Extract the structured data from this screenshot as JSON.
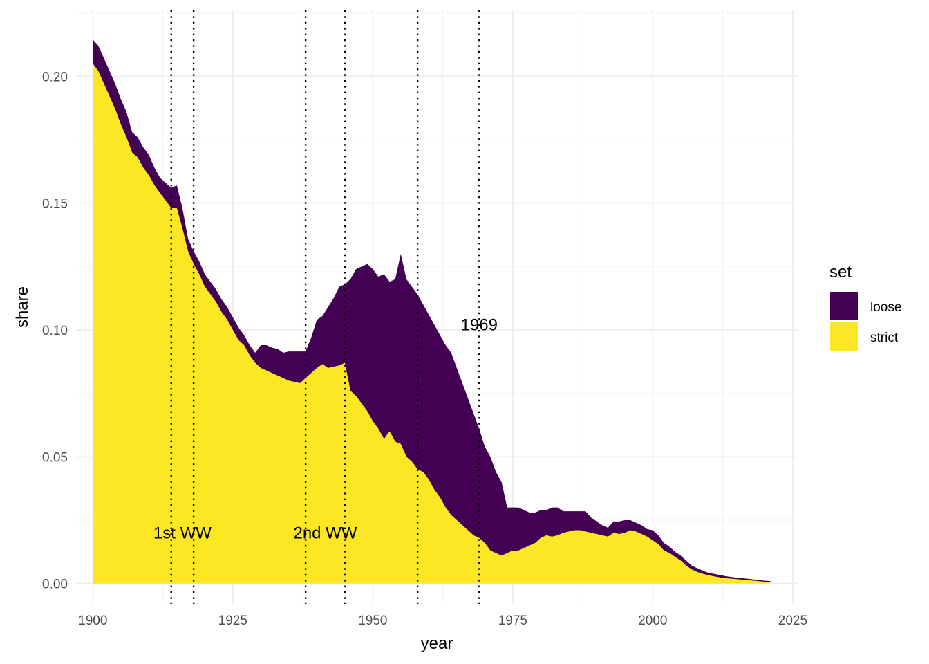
{
  "chart_data": {
    "type": "area",
    "stacked": true,
    "title": "",
    "xlabel": "year",
    "ylabel": "share",
    "xlim": [
      1897,
      2026
    ],
    "ylim": [
      -0.008,
      0.226
    ],
    "x_ticks": [
      1900,
      1925,
      1950,
      1975,
      2000,
      2025
    ],
    "x_tick_labels": [
      "1900",
      "1925",
      "1950",
      "1975",
      "2000",
      "2025"
    ],
    "y_ticks": [
      0.0,
      0.05,
      0.1,
      0.15,
      0.2
    ],
    "y_tick_labels": [
      "0.00",
      "0.05",
      "0.10",
      "0.15",
      "0.20"
    ],
    "grid": true,
    "legend": {
      "title": "set",
      "position": "right",
      "entries": [
        {
          "label": "loose",
          "color": "#440154"
        },
        {
          "label": "strict",
          "color": "#FDE725"
        }
      ]
    },
    "x": [
      1900,
      1901,
      1902,
      1903,
      1904,
      1905,
      1906,
      1907,
      1908,
      1909,
      1910,
      1911,
      1912,
      1913,
      1914,
      1915,
      1916,
      1917,
      1918,
      1919,
      1920,
      1921,
      1922,
      1923,
      1924,
      1925,
      1926,
      1927,
      1928,
      1929,
      1930,
      1931,
      1932,
      1933,
      1934,
      1935,
      1936,
      1937,
      1938,
      1939,
      1940,
      1941,
      1942,
      1943,
      1944,
      1945,
      1946,
      1947,
      1948,
      1949,
      1950,
      1951,
      1952,
      1953,
      1954,
      1955,
      1956,
      1957,
      1958,
      1959,
      1960,
      1961,
      1962,
      1963,
      1964,
      1965,
      1966,
      1967,
      1968,
      1969,
      1970,
      1971,
      1972,
      1973,
      1974,
      1975,
      1976,
      1977,
      1978,
      1979,
      1980,
      1981,
      1982,
      1983,
      1984,
      1985,
      1986,
      1987,
      1988,
      1989,
      1990,
      1991,
      1992,
      1993,
      1994,
      1995,
      1996,
      1997,
      1998,
      1999,
      2000,
      2001,
      2002,
      2003,
      2004,
      2005,
      2006,
      2007,
      2008,
      2009,
      2010,
      2011,
      2012,
      2013,
      2014,
      2015,
      2016,
      2017,
      2018,
      2019,
      2020,
      2021
    ],
    "series": [
      {
        "name": "strict",
        "color": "#FDE725",
        "values": [
          0.205,
          0.202,
          0.197,
          0.192,
          0.187,
          0.181,
          0.176,
          0.17,
          0.168,
          0.164,
          0.161,
          0.157,
          0.154,
          0.151,
          0.148,
          0.148,
          0.14,
          0.131,
          0.126,
          0.122,
          0.117,
          0.114,
          0.111,
          0.107,
          0.104,
          0.1,
          0.096,
          0.094,
          0.09,
          0.087,
          0.085,
          0.084,
          0.083,
          0.082,
          0.081,
          0.08,
          0.0795,
          0.079,
          0.081,
          0.083,
          0.085,
          0.0865,
          0.085,
          0.0855,
          0.086,
          0.087,
          0.076,
          0.074,
          0.071,
          0.068,
          0.064,
          0.061,
          0.057,
          0.06,
          0.056,
          0.055,
          0.05,
          0.048,
          0.045,
          0.044,
          0.041,
          0.037,
          0.034,
          0.03,
          0.027,
          0.025,
          0.023,
          0.021,
          0.019,
          0.018,
          0.016,
          0.013,
          0.012,
          0.011,
          0.012,
          0.013,
          0.013,
          0.014,
          0.015,
          0.016,
          0.018,
          0.019,
          0.0185,
          0.019,
          0.02,
          0.0205,
          0.021,
          0.021,
          0.0205,
          0.02,
          0.0195,
          0.019,
          0.0185,
          0.02,
          0.0195,
          0.02,
          0.021,
          0.0205,
          0.0195,
          0.0185,
          0.017,
          0.0155,
          0.013,
          0.012,
          0.0105,
          0.009,
          0.007,
          0.0055,
          0.0045,
          0.0038,
          0.0032,
          0.0028,
          0.0024,
          0.0021,
          0.0019,
          0.0017,
          0.0015,
          0.0013,
          0.0011,
          0.0009,
          0.0007,
          0.0006
        ]
      },
      {
        "name": "loose",
        "color": "#440154",
        "values": [
          0.0095,
          0.01,
          0.01,
          0.01,
          0.01,
          0.01,
          0.01,
          0.008,
          0.008,
          0.008,
          0.008,
          0.007,
          0.006,
          0.007,
          0.008,
          0.009,
          0.008,
          0.005,
          0.005,
          0.005,
          0.005,
          0.005,
          0.005,
          0.005,
          0.005,
          0.005,
          0.005,
          0.004,
          0.004,
          0.004,
          0.009,
          0.01,
          0.01,
          0.0105,
          0.01,
          0.0115,
          0.012,
          0.0125,
          0.0105,
          0.014,
          0.019,
          0.019,
          0.024,
          0.027,
          0.031,
          0.031,
          0.044,
          0.05,
          0.054,
          0.058,
          0.06,
          0.06,
          0.065,
          0.059,
          0.064,
          0.075,
          0.07,
          0.069,
          0.069,
          0.066,
          0.065,
          0.065,
          0.064,
          0.064,
          0.064,
          0.06,
          0.056,
          0.052,
          0.048,
          0.043,
          0.038,
          0.037,
          0.032,
          0.029,
          0.018,
          0.017,
          0.017,
          0.015,
          0.013,
          0.012,
          0.011,
          0.01,
          0.0115,
          0.011,
          0.0085,
          0.008,
          0.0075,
          0.0075,
          0.008,
          0.006,
          0.005,
          0.004,
          0.0035,
          0.0045,
          0.005,
          0.005,
          0.004,
          0.0035,
          0.0035,
          0.003,
          0.004,
          0.0035,
          0.003,
          0.0025,
          0.002,
          0.002,
          0.002,
          0.0015,
          0.0015,
          0.0012,
          0.001,
          0.001,
          0.001,
          0.0008,
          0.0007,
          0.0006,
          0.0006,
          0.0006,
          0.0005,
          0.0005,
          0.0004,
          0.0004
        ]
      }
    ],
    "reference_lines": [
      1914,
      1918,
      1938,
      1945,
      1958,
      1969
    ],
    "annotations": [
      {
        "text": "1st WW",
        "x": 1916,
        "y": 0.02
      },
      {
        "text": "2nd WW",
        "x": 1941.5,
        "y": 0.02
      },
      {
        "text": "1969",
        "x": 1969,
        "y": 0.102
      }
    ]
  }
}
